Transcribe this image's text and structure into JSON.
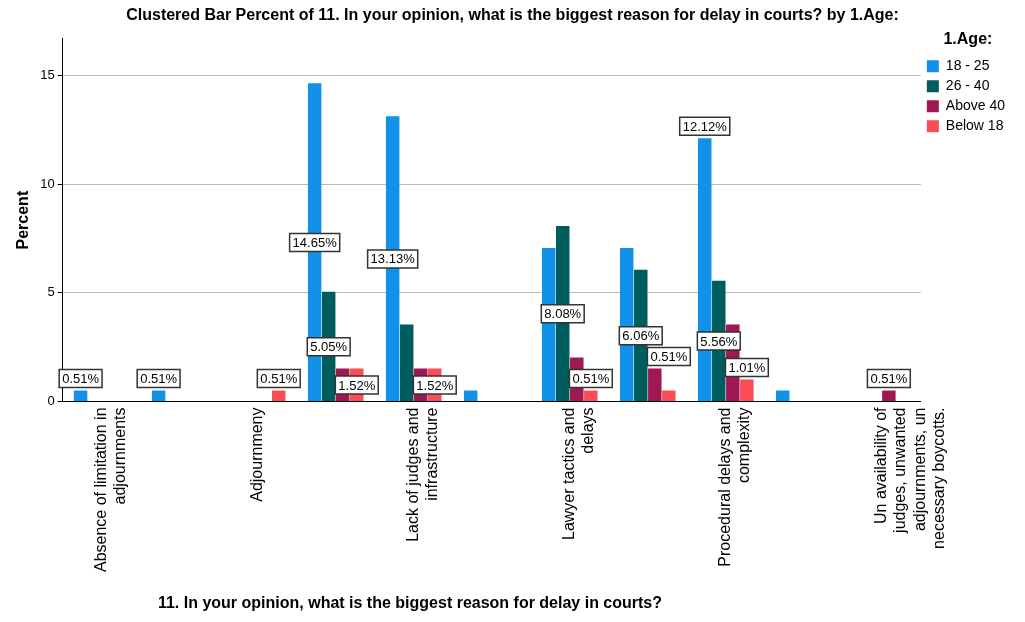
{
  "chart_data": {
    "type": "bar",
    "title": "Clustered Bar Percent of 11. In your opinion, what is the biggest reason for delay in courts? by 1.Age:",
    "xlabel": "11. In your opinion, what is the biggest reason for delay in courts?",
    "ylabel": "Percent",
    "legend_title": "1.Age:",
    "categories": [
      "Absence of limitation in adjournments",
      null,
      "Adjournmeny",
      null,
      "Lack of judges and infrastructure",
      null,
      "Lawyer tactics and delays",
      null,
      "Procedural delays and complexity",
      null,
      "Un availability of judges, unwanted adjournments, un necessary boycotts."
    ],
    "series": [
      {
        "name": "18 - 25",
        "color": "#1192e8",
        "values": [
          0.51,
          0.51,
          null,
          14.65,
          13.13,
          0.51,
          7.07,
          7.07,
          12.12,
          0.51,
          null
        ],
        "value_labels": [
          "0.51%",
          "0.51%",
          null,
          "14.65%",
          "13.13%",
          null,
          null,
          null,
          "12.12%",
          null,
          null
        ]
      },
      {
        "name": "26 - 40",
        "color": "#005d5d",
        "values": [
          null,
          null,
          null,
          5.05,
          3.54,
          null,
          8.08,
          6.06,
          5.56,
          null,
          null
        ],
        "value_labels": [
          null,
          null,
          null,
          "5.05%",
          null,
          null,
          "8.08%",
          "6.06%",
          "5.56%",
          null,
          null
        ]
      },
      {
        "name": "Above 40",
        "color": "#9f1853",
        "values": [
          null,
          null,
          null,
          1.52,
          1.52,
          null,
          2.02,
          1.52,
          3.54,
          null,
          0.51
        ],
        "value_labels": [
          null,
          null,
          null,
          null,
          null,
          null,
          null,
          null,
          null,
          null,
          "0.51%"
        ]
      },
      {
        "name": "Below 18",
        "color": "#fa4d56",
        "values": [
          null,
          null,
          0.51,
          1.52,
          1.52,
          null,
          0.51,
          0.51,
          1.01,
          null,
          null
        ],
        "value_labels": [
          null,
          null,
          "0.51%",
          "1.52%",
          "1.52%",
          null,
          "0.51%",
          "0.51%",
          "1.01%",
          null,
          null
        ]
      }
    ],
    "ylim": [
      0,
      16.7
    ],
    "yticks": [
      0,
      5,
      10,
      15
    ],
    "grid": "y",
    "legend": "right"
  }
}
